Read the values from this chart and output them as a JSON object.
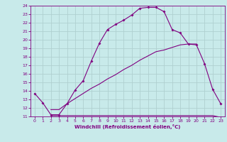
{
  "xlabel": "Windchill (Refroidissement éolien,°C)",
  "bg_color": "#c8eaea",
  "line_color": "#800080",
  "grid_color": "#b0d0d0",
  "ylim": [
    11,
    24
  ],
  "xlim": [
    -0.5,
    23.5
  ],
  "yticks": [
    11,
    12,
    13,
    14,
    15,
    16,
    17,
    18,
    19,
    20,
    21,
    22,
    23,
    24
  ],
  "xticks": [
    0,
    1,
    2,
    3,
    4,
    5,
    6,
    7,
    8,
    9,
    10,
    11,
    12,
    13,
    14,
    15,
    16,
    17,
    18,
    19,
    20,
    21,
    22,
    23
  ],
  "curve1_x": [
    0,
    1,
    2,
    3,
    4,
    5,
    6,
    7,
    8,
    9,
    10,
    11,
    12,
    13,
    14,
    15,
    16,
    17,
    18,
    19,
    20,
    21,
    22,
    23
  ],
  "curve1_y": [
    13.7,
    12.6,
    11.2,
    11.2,
    12.5,
    14.1,
    15.2,
    17.5,
    19.6,
    21.2,
    21.8,
    22.3,
    22.9,
    23.7,
    23.8,
    23.8,
    23.3,
    21.2,
    20.8,
    19.5,
    19.4,
    17.2,
    14.2,
    12.5
  ],
  "curve2_x": [
    2,
    3,
    4,
    5,
    6,
    7,
    8,
    9,
    10,
    11,
    12,
    13,
    14,
    15,
    16,
    17,
    18,
    19,
    20
  ],
  "curve2_y": [
    11.8,
    11.8,
    12.5,
    13.1,
    13.7,
    14.3,
    14.8,
    15.4,
    15.9,
    16.5,
    17.0,
    17.6,
    18.1,
    18.6,
    18.8,
    19.1,
    19.4,
    19.5,
    19.5
  ],
  "curve3_x": [
    2,
    3,
    4,
    5,
    6,
    7,
    8,
    9,
    10,
    11,
    12,
    13,
    14,
    15,
    16,
    17,
    18,
    19,
    20,
    21,
    22,
    23
  ],
  "curve3_y": [
    11.1,
    11.1,
    11.1,
    11.1,
    11.1,
    11.1,
    11.1,
    11.1,
    11.1,
    11.1,
    11.1,
    11.1,
    11.1,
    11.1,
    11.1,
    11.1,
    11.1,
    11.1,
    11.1,
    11.1,
    11.1,
    10.9
  ]
}
